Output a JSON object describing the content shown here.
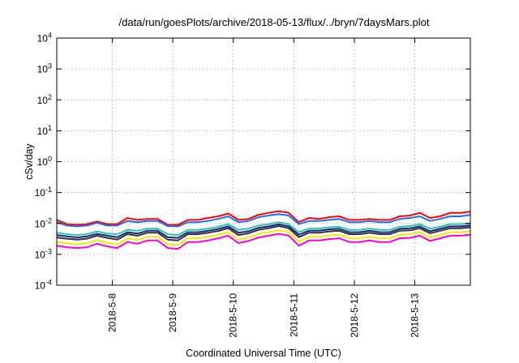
{
  "chart_data": {
    "type": "line",
    "title": "/data/run/goesPlots/archive/2018-05-13/flux/../bryn/7daysMars.plot",
    "xlabel": "Coordinated Universal Time (UTC)",
    "ylabel": "cSv/day",
    "y_scale": "log",
    "ylim": [
      0.0001,
      10000
    ],
    "y_ticks": [
      {
        "base": "10",
        "exp": "-4"
      },
      {
        "base": "10",
        "exp": "-3"
      },
      {
        "base": "10",
        "exp": "-2"
      },
      {
        "base": "10",
        "exp": "-1"
      },
      {
        "base": "10",
        "exp": "0"
      },
      {
        "base": "10",
        "exp": "1"
      },
      {
        "base": "10",
        "exp": "2"
      },
      {
        "base": "10",
        "exp": "3"
      },
      {
        "base": "10",
        "exp": "4"
      }
    ],
    "xlim": [
      "2018-05-07T02:00",
      "2018-05-13T22:00"
    ],
    "x_ticks": [
      "2018-5-8",
      "2018-5-9",
      "2018-5-10",
      "2018-5-11",
      "2018-5-12",
      "2018-5-13"
    ],
    "grid": true,
    "x": [
      "2018-05-07T02:00",
      "2018-05-07T06:00",
      "2018-05-07T10:00",
      "2018-05-07T14:00",
      "2018-05-07T18:00",
      "2018-05-07T22:00",
      "2018-05-08T02:00",
      "2018-05-08T06:00",
      "2018-05-08T10:00",
      "2018-05-08T14:00",
      "2018-05-08T18:00",
      "2018-05-08T22:00",
      "2018-05-09T02:00",
      "2018-05-09T06:00",
      "2018-05-09T10:00",
      "2018-05-09T14:00",
      "2018-05-09T18:00",
      "2018-05-09T22:00",
      "2018-05-10T02:00",
      "2018-05-10T06:00",
      "2018-05-10T10:00",
      "2018-05-10T14:00",
      "2018-05-10T18:00",
      "2018-05-10T22:00",
      "2018-05-11T02:00",
      "2018-05-11T06:00",
      "2018-05-11T10:00",
      "2018-05-11T14:00",
      "2018-05-11T18:00",
      "2018-05-11T22:00",
      "2018-05-12T02:00",
      "2018-05-12T06:00",
      "2018-05-12T10:00",
      "2018-05-12T14:00",
      "2018-05-12T18:00",
      "2018-05-12T22:00",
      "2018-05-13T02:00",
      "2018-05-13T06:00",
      "2018-05-13T10:00",
      "2018-05-13T14:00",
      "2018-05-13T18:00",
      "2018-05-13T22:00"
    ],
    "series": [
      {
        "color": "#ff0000",
        "values": [
          0.013,
          0.0095,
          0.009,
          0.0095,
          0.0115,
          0.0095,
          0.0095,
          0.015,
          0.013,
          0.014,
          0.014,
          0.009,
          0.009,
          0.013,
          0.013,
          0.015,
          0.017,
          0.021,
          0.013,
          0.014,
          0.019,
          0.022,
          0.025,
          0.022,
          0.011,
          0.015,
          0.014,
          0.016,
          0.017,
          0.013,
          0.013,
          0.014,
          0.013,
          0.013,
          0.017,
          0.018,
          0.022,
          0.015,
          0.017,
          0.022,
          0.022,
          0.024
        ]
      },
      {
        "color": "#1e6ff0",
        "values": [
          0.011,
          0.0085,
          0.008,
          0.0085,
          0.0105,
          0.0085,
          0.0085,
          0.012,
          0.011,
          0.012,
          0.012,
          0.0082,
          0.008,
          0.011,
          0.011,
          0.012,
          0.014,
          0.017,
          0.011,
          0.012,
          0.016,
          0.018,
          0.02,
          0.018,
          0.0095,
          0.012,
          0.012,
          0.013,
          0.014,
          0.011,
          0.011,
          0.012,
          0.011,
          0.011,
          0.014,
          0.015,
          0.017,
          0.012,
          0.014,
          0.017,
          0.017,
          0.019
        ]
      },
      {
        "color": "#2ec4a8",
        "values": [
          0.005,
          0.0045,
          0.0042,
          0.0045,
          0.0055,
          0.0047,
          0.0045,
          0.0062,
          0.0058,
          0.0068,
          0.0068,
          0.0045,
          0.0042,
          0.0062,
          0.0062,
          0.0068,
          0.0078,
          0.0095,
          0.0062,
          0.0068,
          0.0085,
          0.0095,
          0.011,
          0.0095,
          0.0052,
          0.0068,
          0.0068,
          0.0075,
          0.0078,
          0.0062,
          0.0062,
          0.0068,
          0.0062,
          0.0062,
          0.0078,
          0.0082,
          0.0095,
          0.0068,
          0.0078,
          0.0095,
          0.0095,
          0.01
        ]
      },
      {
        "color": "#333333",
        "values": [
          0.0035,
          0.0032,
          0.003,
          0.0032,
          0.004,
          0.0034,
          0.003,
          0.0045,
          0.004,
          0.005,
          0.005,
          0.003,
          0.0028,
          0.0045,
          0.0045,
          0.005,
          0.0057,
          0.007,
          0.0042,
          0.0048,
          0.0062,
          0.007,
          0.0082,
          0.007,
          0.0036,
          0.005,
          0.005,
          0.0055,
          0.0058,
          0.0045,
          0.0045,
          0.005,
          0.0045,
          0.0045,
          0.0058,
          0.006,
          0.007,
          0.0048,
          0.0058,
          0.007,
          0.007,
          0.0075
        ]
      },
      {
        "color": "#1a237e",
        "values": [
          0.0042,
          0.0038,
          0.0035,
          0.0038,
          0.0046,
          0.004,
          0.0036,
          0.0052,
          0.0047,
          0.0058,
          0.0058,
          0.0036,
          0.0034,
          0.0052,
          0.0052,
          0.0058,
          0.0066,
          0.008,
          0.005,
          0.0056,
          0.0072,
          0.008,
          0.0094,
          0.008,
          0.0043,
          0.0058,
          0.0058,
          0.0064,
          0.0067,
          0.0052,
          0.0052,
          0.0058,
          0.0052,
          0.0052,
          0.0067,
          0.007,
          0.008,
          0.0056,
          0.0067,
          0.008,
          0.008,
          0.0086
        ]
      },
      {
        "color": "#ffe600",
        "values": [
          0.0025,
          0.0023,
          0.0021,
          0.0023,
          0.0029,
          0.0024,
          0.0021,
          0.0033,
          0.0029,
          0.0037,
          0.0037,
          0.0021,
          0.002,
          0.0033,
          0.0033,
          0.0037,
          0.0043,
          0.0052,
          0.003,
          0.0035,
          0.0046,
          0.0052,
          0.006,
          0.0052,
          0.0026,
          0.0037,
          0.0037,
          0.0041,
          0.0043,
          0.0033,
          0.0033,
          0.0037,
          0.0033,
          0.0033,
          0.0043,
          0.0045,
          0.0052,
          0.0035,
          0.0043,
          0.0052,
          0.0052,
          0.0056
        ]
      },
      {
        "color": "#ff00cc",
        "values": [
          0.0019,
          0.0017,
          0.0016,
          0.0017,
          0.0022,
          0.0018,
          0.0016,
          0.0025,
          0.0022,
          0.0028,
          0.0028,
          0.0016,
          0.0015,
          0.0025,
          0.0025,
          0.0028,
          0.0033,
          0.004,
          0.0023,
          0.0027,
          0.0035,
          0.004,
          0.0046,
          0.004,
          0.0019,
          0.0028,
          0.0028,
          0.0031,
          0.0033,
          0.0025,
          0.0025,
          0.0028,
          0.0025,
          0.0025,
          0.0033,
          0.0034,
          0.004,
          0.0027,
          0.0033,
          0.004,
          0.004,
          0.0043
        ]
      }
    ]
  }
}
